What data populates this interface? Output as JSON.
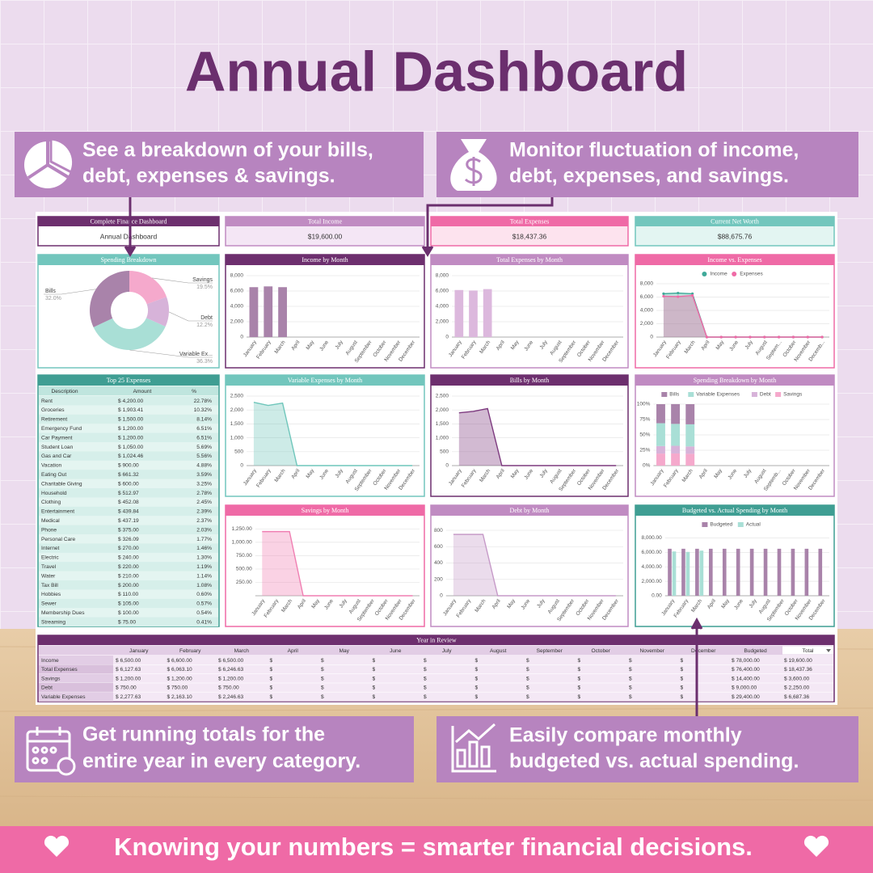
{
  "title": "Annual Dashboard",
  "callouts": [
    {
      "lines": [
        "See a breakdown of your bills,",
        "debt, expenses & savings."
      ]
    },
    {
      "lines": [
        "Monitor fluctuation of income,",
        "debt, expenses, and savings."
      ]
    },
    {
      "lines": [
        "Get running totals for the",
        "entire year in every category."
      ]
    },
    {
      "lines": [
        "Easily compare monthly",
        "budgeted vs. actual spending."
      ]
    }
  ],
  "footer": "Knowing your numbers = smarter financial decisions.",
  "dashboard": {
    "cards": [
      {
        "title": "Complete Finance Dashboard",
        "value": "Annual Dashboard"
      },
      {
        "title": "Total Income",
        "value": "$19,600.00"
      },
      {
        "title": "Total Expenses",
        "value": "$18,437.36"
      },
      {
        "title": "Current Net Worth",
        "value": "$88,675.76"
      }
    ],
    "breakdown": {
      "type": "pie",
      "title": "Spending Breakdown",
      "categories": [
        "Savings",
        "Debt",
        "Variable Ex...",
        "Bills"
      ],
      "values": [
        19.5,
        12.2,
        36.3,
        32.0
      ],
      "value_labels": [
        "19.5%",
        "12.2%",
        "36.3%",
        "32.0%"
      ],
      "colors": [
        "#f5a9cc",
        "#d7b3d9",
        "#a9dfd6",
        "#a983aa"
      ]
    },
    "charts": [
      {
        "type": "bar",
        "title": "Income by Month",
        "categories": [
          "January",
          "February",
          "March",
          "April",
          "May",
          "June",
          "July",
          "August",
          "September",
          "October",
          "November",
          "December"
        ],
        "values": [
          6500,
          6600,
          6500,
          null,
          null,
          null,
          null,
          null,
          null,
          null,
          null,
          null
        ],
        "color": "#a983aa",
        "ylim": [
          0,
          8000
        ],
        "yticks": [
          0,
          {
            "value": 2000,
            "label": "2,000"
          },
          {
            "value": 4000,
            "label": "4,000"
          },
          {
            "value": 6000,
            "label": "6,000"
          },
          {
            "value": 8000,
            "label": "8,000"
          }
        ],
        "grid": true
      },
      {
        "type": "bar",
        "title": "Total Expenses by Month",
        "categories": [
          "January",
          "February",
          "March",
          "April",
          "May",
          "June",
          "July",
          "August",
          "September",
          "October",
          "November",
          "December"
        ],
        "values": [
          6127.63,
          6063.1,
          6246.63,
          null,
          null,
          null,
          null,
          null,
          null,
          null,
          null,
          null
        ],
        "color": "#dcb8dd",
        "ylim": [
          0,
          8000
        ],
        "yticks": [
          0,
          {
            "value": 2000,
            "label": "2,000"
          },
          {
            "value": 4000,
            "label": "4,000"
          },
          {
            "value": 6000,
            "label": "6,000"
          },
          {
            "value": 8000,
            "label": "8,000"
          }
        ],
        "grid": true
      },
      {
        "type": "area",
        "title": "Income vs. Expenses",
        "legend": true,
        "markers": true,
        "categories": [
          "January",
          "February",
          "March",
          "April",
          "May",
          "June",
          "July",
          "August",
          "Septem...",
          "October",
          "November",
          "Decemb..."
        ],
        "series": [
          {
            "name": "Income",
            "color": "#3fa999",
            "values": [
              6500,
              6600,
              6500,
              0,
              0,
              0,
              0,
              0,
              0,
              0,
              0,
              0
            ]
          },
          {
            "name": "Expenses",
            "color": "#ef6aa6",
            "values": [
              6127.63,
              6063.1,
              6246.63,
              0,
              0,
              0,
              0,
              0,
              0,
              0,
              0,
              0
            ]
          }
        ],
        "ylim": [
          0,
          8000
        ],
        "yticks": [
          0,
          {
            "value": 2000,
            "label": "2,000"
          },
          {
            "value": 4000,
            "label": "4,000"
          },
          {
            "value": 6000,
            "label": "6,000"
          },
          {
            "value": 8000,
            "label": "8,000"
          }
        ],
        "grid": true
      },
      {
        "type": "area",
        "title": "Variable Expenses by Month",
        "categories": [
          "January",
          "February",
          "March",
          "April",
          "May",
          "June",
          "July",
          "August",
          "September",
          "October",
          "November",
          "December"
        ],
        "values": [
          2277.63,
          2163.1,
          2246.63,
          0,
          0,
          0,
          0,
          0,
          0,
          0,
          0,
          0
        ],
        "color": "#6fc6bb",
        "ylim": [
          0,
          2500
        ],
        "yticks": [
          0,
          500,
          {
            "value": 1000,
            "label": "1,000"
          },
          {
            "value": 1500,
            "label": "1,500"
          },
          {
            "value": 2000,
            "label": "2,000"
          },
          {
            "value": 2500,
            "label": "2,500"
          }
        ],
        "grid": true
      },
      {
        "type": "area",
        "title": "Bills by Month",
        "categories": [
          "January",
          "February",
          "March",
          "April",
          "May",
          "June",
          "July",
          "August",
          "September",
          "October",
          "November",
          "December"
        ],
        "values": [
          1900,
          1950,
          2050,
          0,
          0,
          0,
          0,
          0,
          0,
          0,
          0,
          0
        ],
        "color": "#7d3a7f",
        "ylim": [
          0,
          2500
        ],
        "yticks": [
          0,
          500,
          {
            "value": 1000,
            "label": "1,000"
          },
          {
            "value": 1500,
            "label": "1,500"
          },
          {
            "value": 2000,
            "label": "2,000"
          },
          {
            "value": 2500,
            "label": "2,500"
          }
        ],
        "grid": true
      },
      {
        "type": "stacked-bar",
        "title": "Spending Breakdown by Month",
        "legend": true,
        "categories": [
          "January",
          "February",
          "March",
          "April",
          "May",
          "June",
          "July",
          "August",
          "Septemb...",
          "October",
          "November",
          "December"
        ],
        "series": [
          {
            "name": "Bills",
            "color": "#a983aa",
            "values": [
              31.0,
              32.2,
              32.8,
              null,
              null,
              null,
              null,
              null,
              null,
              null,
              null,
              null
            ]
          },
          {
            "name": "Variable Expenses",
            "color": "#a9dfd6",
            "values": [
              37.2,
              35.7,
              36.0,
              null,
              null,
              null,
              null,
              null,
              null,
              null,
              null,
              null
            ]
          },
          {
            "name": "Debt",
            "color": "#d7b3d9",
            "values": [
              12.2,
              12.4,
              12.0,
              null,
              null,
              null,
              null,
              null,
              null,
              null,
              null,
              null
            ]
          },
          {
            "name": "Savings",
            "color": "#f5a9cc",
            "values": [
              19.6,
              19.8,
              19.2,
              null,
              null,
              null,
              null,
              null,
              null,
              null,
              null,
              null
            ]
          }
        ],
        "ylim": [
          0,
          100
        ],
        "yticks": [
          {
            "value": 0,
            "label": "0%"
          },
          {
            "value": 25,
            "label": "25%"
          },
          {
            "value": 50,
            "label": "50%"
          },
          {
            "value": 75,
            "label": "75%"
          },
          {
            "value": 100,
            "label": "100%"
          }
        ],
        "grid": true
      },
      {
        "type": "area",
        "title": "Savings by Month",
        "categories": [
          "January",
          "February",
          "March",
          "April",
          "May",
          "June",
          "July",
          "August",
          "September",
          "October",
          "November",
          "December"
        ],
        "values": [
          1200,
          1200,
          1200,
          0,
          0,
          0,
          0,
          0,
          0,
          0,
          0,
          0
        ],
        "color": "#f07fb2",
        "ylim": [
          0,
          1300
        ],
        "yticks": [
          {
            "value": 250,
            "label": "250.00"
          },
          {
            "value": 500,
            "label": "500.00"
          },
          {
            "value": 750,
            "label": "750.00"
          },
          {
            "value": 1000,
            "label": "1,000.00"
          },
          {
            "value": 1250,
            "label": "1,250.00"
          }
        ],
        "grid": true
      },
      {
        "type": "area",
        "title": "Debt by Month",
        "categories": [
          "January",
          "February",
          "March",
          "April",
          "May",
          "June",
          "July",
          "August",
          "September",
          "October",
          "November",
          "December"
        ],
        "values": [
          750,
          750,
          750,
          0,
          0,
          0,
          0,
          0,
          0,
          0,
          0,
          0
        ],
        "color": "#c69ac8",
        "ylim": [
          0,
          850
        ],
        "yticks": [
          0,
          200,
          400,
          600,
          800
        ],
        "grid": true
      },
      {
        "type": "bar",
        "title": "Budgeted vs. Actual Spending by Month",
        "legend": true,
        "categories": [
          "January",
          "February",
          "March",
          "April",
          "May",
          "June",
          "July",
          "August",
          "September",
          "October",
          "November",
          "December"
        ],
        "series": [
          {
            "name": "Budgeted",
            "color": "#a983aa",
            "values": [
              6500,
              6500,
              6500,
              6500,
              6500,
              6500,
              6500,
              6500,
              6500,
              6500,
              6500,
              6500
            ]
          },
          {
            "name": "Actual",
            "color": "#a9dfd6",
            "values": [
              6127.63,
              6063.1,
              6246.63,
              null,
              null,
              null,
              null,
              null,
              null,
              null,
              null,
              null
            ]
          }
        ],
        "ylim": [
          0,
          8500
        ],
        "yticks": [
          {
            "value": 0,
            "label": "0.00"
          },
          {
            "value": 2000,
            "label": "2,000.00"
          },
          {
            "value": 4000,
            "label": "4,000.00"
          },
          {
            "value": 6000,
            "label": "6,000.00"
          },
          {
            "value": 8000,
            "label": "8,000.00"
          }
        ],
        "grid": true
      }
    ],
    "top_expenses": {
      "title": "Top 25 Expenses",
      "columns": [
        "Description",
        "Amount",
        "%"
      ],
      "rows": [
        [
          "Rent",
          "$ 4,200.00",
          "22.78%"
        ],
        [
          "Groceries",
          "$ 1,903.41",
          "10.32%"
        ],
        [
          "Retirement",
          "$ 1,500.00",
          "8.14%"
        ],
        [
          "Emergency Fund",
          "$ 1,200.00",
          "6.51%"
        ],
        [
          "Car Payment",
          "$ 1,200.00",
          "6.51%"
        ],
        [
          "Student Loan",
          "$ 1,050.00",
          "5.69%"
        ],
        [
          "Gas and Car",
          "$ 1,024.46",
          "5.56%"
        ],
        [
          "Vacation",
          "$ 900.00",
          "4.88%"
        ],
        [
          "Eating Out",
          "$ 661.32",
          "3.59%"
        ],
        [
          "Charitable Giving",
          "$ 600.00",
          "3.25%"
        ],
        [
          "Household",
          "$ 512.97",
          "2.78%"
        ],
        [
          "Clothing",
          "$ 452.08",
          "2.45%"
        ],
        [
          "Entertainment",
          "$ 439.84",
          "2.39%"
        ],
        [
          "Medical",
          "$ 437.19",
          "2.37%"
        ],
        [
          "Phone",
          "$ 375.00",
          "2.03%"
        ],
        [
          "Personal Care",
          "$ 326.09",
          "1.77%"
        ],
        [
          "Internet",
          "$ 270.00",
          "1.46%"
        ],
        [
          "Electric",
          "$ 240.00",
          "1.30%"
        ],
        [
          "Travel",
          "$ 220.00",
          "1.19%"
        ],
        [
          "Water",
          "$ 210.00",
          "1.14%"
        ],
        [
          "Tax Bill",
          "$ 200.00",
          "1.08%"
        ],
        [
          "Hobbies",
          "$ 110.00",
          "0.60%"
        ],
        [
          "Sewer",
          "$ 105.00",
          "0.57%"
        ],
        [
          "Membership Dues",
          "$ 100.00",
          "0.54%"
        ],
        [
          "Streaming",
          "$ 75.00",
          "0.41%"
        ]
      ]
    },
    "year_review": {
      "title": "Year in Review",
      "columns": [
        "January",
        "February",
        "March",
        "April",
        "May",
        "June",
        "July",
        "August",
        "September",
        "October",
        "November",
        "December",
        "Budgeted",
        "Total"
      ],
      "rows": [
        {
          "label": "Income",
          "cells": [
            "$ 6,500.00",
            "$ 6,600.00",
            "$ 6,500.00",
            "$",
            "$",
            "$",
            "$",
            "$",
            "$",
            "$",
            "$",
            "$",
            "$ 78,000.00",
            "$ 19,600.00"
          ]
        },
        {
          "label": "Total Expenses",
          "cells": [
            "$ 6,127.63",
            "$ 6,063.10",
            "$ 6,246.63",
            "$",
            "$",
            "$",
            "$",
            "$",
            "$",
            "$",
            "$",
            "$",
            "$ 76,400.00",
            "$ 18,437.36"
          ]
        },
        {
          "label": "Savings",
          "cells": [
            "$ 1,200.00",
            "$ 1,200.00",
            "$ 1,200.00",
            "$",
            "$",
            "$",
            "$",
            "$",
            "$",
            "$",
            "$",
            "$",
            "$ 14,400.00",
            "$ 3,600.00"
          ]
        },
        {
          "label": "Debt",
          "cells": [
            "$ 750.00",
            "$ 750.00",
            "$ 750.00",
            "$",
            "$",
            "$",
            "$",
            "$",
            "$",
            "$",
            "$",
            "$",
            "$ 9,000.00",
            "$ 2,250.00"
          ]
        },
        {
          "label": "Variable Expenses",
          "cells": [
            "$ 2,277.63",
            "$ 2,163.10",
            "$ 2,246.63",
            "$",
            "$",
            "$",
            "$",
            "$",
            "$",
            "$",
            "$",
            "$",
            "$ 29,400.00",
            "$ 6,687.36"
          ]
        }
      ]
    }
  }
}
